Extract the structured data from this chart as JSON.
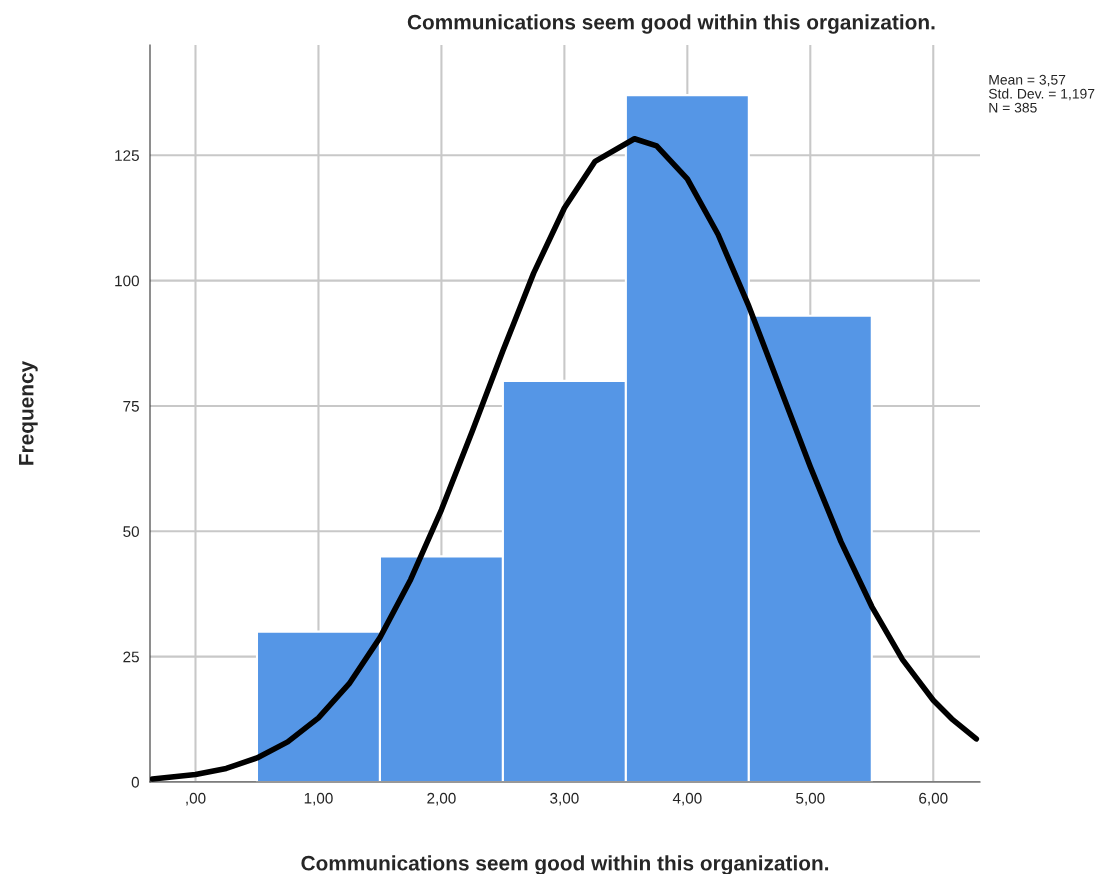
{
  "chart_data": {
    "type": "histogram",
    "title": "Communications seem good within this organization.",
    "xlabel": "Communications seem good within this organization.",
    "ylabel": "Frequency",
    "bins": [
      0.5,
      1.5,
      2.5,
      3.5,
      4.5,
      5.5
    ],
    "values": [
      30,
      45,
      80,
      137,
      93
    ],
    "color": "#5596e6",
    "series": [
      {
        "type": "line",
        "color": "#000000",
        "x": [
          -0.35,
          0,
          0.25,
          0.5,
          0.75,
          1.0,
          1.25,
          1.5,
          1.75,
          2.0,
          2.25,
          2.5,
          2.75,
          3.0,
          3.25,
          3.57,
          3.75,
          4.0,
          4.25,
          4.5,
          4.75,
          5.0,
          5.25,
          5.5,
          5.75,
          6.0,
          6.15,
          6.35
        ],
        "values": [
          0.6,
          1.5,
          2.7,
          4.8,
          8.0,
          12.8,
          19.6,
          28.8,
          40.4,
          54.3,
          69.9,
          86.0,
          101.5,
          114.5,
          123.8,
          128.3,
          126.9,
          120.3,
          109.2,
          94.9,
          78.9,
          62.9,
          47.9,
          35.0,
          24.4,
          16.3,
          12.6,
          8.6
        ]
      }
    ],
    "xlim": [
      -0.37,
      6.38
    ],
    "xticks": [
      {
        "value": 0,
        "label": ",00"
      },
      {
        "value": 1,
        "label": "1,00"
      },
      {
        "value": 2,
        "label": "2,00"
      },
      {
        "value": 3,
        "label": "3,00"
      },
      {
        "value": 4,
        "label": "4,00"
      },
      {
        "value": 5,
        "label": "5,00"
      },
      {
        "value": 6,
        "label": "6,00"
      }
    ],
    "ylim": [
      0,
      147
    ],
    "yticks": [
      0,
      25,
      50,
      75,
      100,
      125
    ],
    "grid": true,
    "annotations": [
      "Mean = 3,57",
      "Std. Dev. = 1,197",
      "N = 385"
    ]
  }
}
